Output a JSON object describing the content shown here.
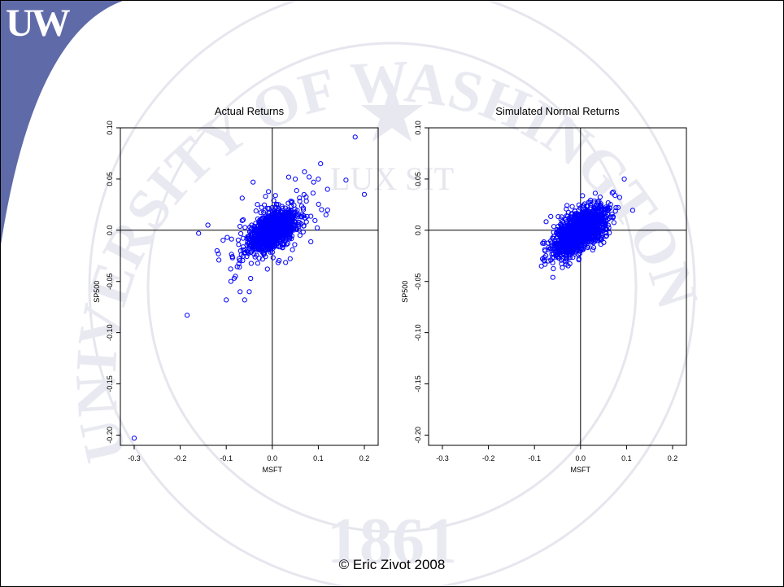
{
  "slide": {
    "logo_text": "UW",
    "footer": "© Eric Zivot 2008",
    "seal_text": "UNIVERSITY OF WASHINGTON",
    "seal_year": "1861",
    "seal_motto": "LUX SIT",
    "colors": {
      "corner": "#5f6aa8",
      "points": "#0000ff",
      "seal": "#e2e2ec"
    }
  },
  "chart_data": [
    {
      "type": "scatter",
      "title": "Actual Returns",
      "xlabel": "MSFT",
      "ylabel": "SP500",
      "xlim": [
        -0.33,
        0.23
      ],
      "ylim": [
        -0.21,
        0.1
      ],
      "x_ticks": [
        "-0.3",
        "-0.2",
        "-0.1",
        "0.0",
        "0.1",
        "0.2"
      ],
      "y_ticks": [
        "-0.20",
        "-0.15",
        "-0.10",
        "-0.05",
        "0.0",
        "0.05",
        "0.10"
      ],
      "reference_lines": {
        "x": 0,
        "y": 0
      },
      "cloud": {
        "n": 1400,
        "sd_x": 0.028,
        "sd_y": 0.011,
        "rho": 0.55,
        "heavy_tails": true
      },
      "outliers": [
        [
          -0.3,
          -0.203
        ],
        [
          -0.185,
          -0.083
        ],
        [
          0.18,
          0.091
        ],
        [
          0.2,
          0.035
        ],
        [
          0.16,
          0.049
        ],
        [
          -0.14,
          0.005
        ],
        [
          -0.16,
          -0.003
        ],
        [
          -0.12,
          -0.02
        ],
        [
          -0.1,
          -0.068
        ],
        [
          -0.06,
          -0.068
        ],
        [
          -0.09,
          -0.05
        ],
        [
          -0.08,
          -0.045
        ],
        [
          -0.07,
          -0.06
        ],
        [
          0.1,
          0.05
        ],
        [
          0.08,
          0.052
        ],
        [
          0.07,
          0.057
        ],
        [
          0.06,
          -0.005
        ],
        [
          -0.05,
          -0.06
        ],
        [
          0.12,
          0.04
        ],
        [
          0.05,
          0.05
        ]
      ]
    },
    {
      "type": "scatter",
      "title": "Simulated Normal Returns",
      "xlabel": "MSFT",
      "ylabel": "SP500",
      "xlim": [
        -0.33,
        0.23
      ],
      "ylim": [
        -0.21,
        0.1
      ],
      "x_ticks": [
        "-0.3",
        "-0.2",
        "-0.1",
        "0.0",
        "0.1",
        "0.2"
      ],
      "y_ticks": [
        "-0.20",
        "-0.15",
        "-0.10",
        "-0.05",
        "0.0",
        "0.05",
        "0.10"
      ],
      "reference_lines": {
        "x": 0,
        "y": 0
      },
      "cloud": {
        "n": 1400,
        "sd_x": 0.03,
        "sd_y": 0.012,
        "rho": 0.6,
        "heavy_tails": false
      },
      "outliers": [
        [
          -0.085,
          -0.035
        ],
        [
          -0.06,
          -0.046
        ],
        [
          0.095,
          0.05
        ],
        [
          0.085,
          0.032
        ],
        [
          -0.07,
          -0.03
        ]
      ]
    }
  ]
}
